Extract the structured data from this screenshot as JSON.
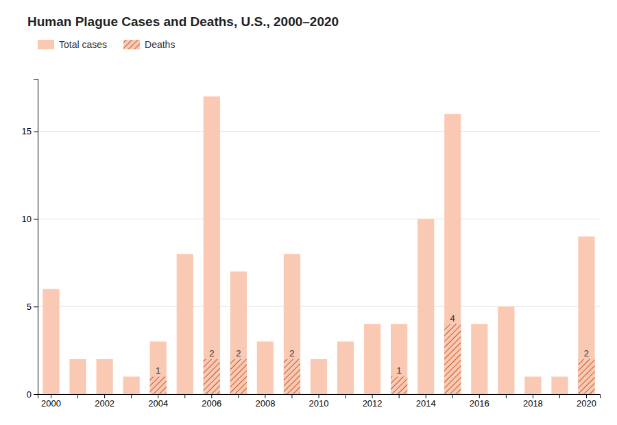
{
  "chart_data": {
    "type": "bar",
    "title": "Human Plague Cases and Deaths, U.S., 2000–2020",
    "categories": [
      "2000",
      null,
      "2002",
      null,
      "2004",
      null,
      "2006",
      null,
      "2008",
      null,
      "2010",
      null,
      "2012",
      null,
      "2014",
      null,
      "2016",
      null,
      "2018",
      null,
      "2020"
    ],
    "series": [
      {
        "name": "Total cases",
        "color": "#f9c9b4",
        "values": [
          6,
          2,
          2,
          1,
          3,
          8,
          17,
          7,
          3,
          8,
          2,
          3,
          4,
          4,
          10,
          16,
          4,
          5,
          1,
          1,
          9
        ]
      },
      {
        "name": "Deaths",
        "color": "#c85a28",
        "values": [
          0,
          0,
          0,
          0,
          1,
          0,
          2,
          2,
          0,
          2,
          0,
          0,
          0,
          1,
          0,
          4,
          0,
          0,
          0,
          0,
          2
        ],
        "data_labels": true,
        "value_labels": [
          null,
          null,
          null,
          null,
          "1",
          null,
          "2",
          "2",
          null,
          "2",
          null,
          null,
          null,
          "1",
          null,
          "4",
          null,
          null,
          null,
          null,
          "2"
        ]
      }
    ],
    "ylim": [
      0,
      18
    ],
    "yticks": [
      0,
      5,
      10,
      15
    ],
    "grid": true,
    "legend": "top-left"
  }
}
